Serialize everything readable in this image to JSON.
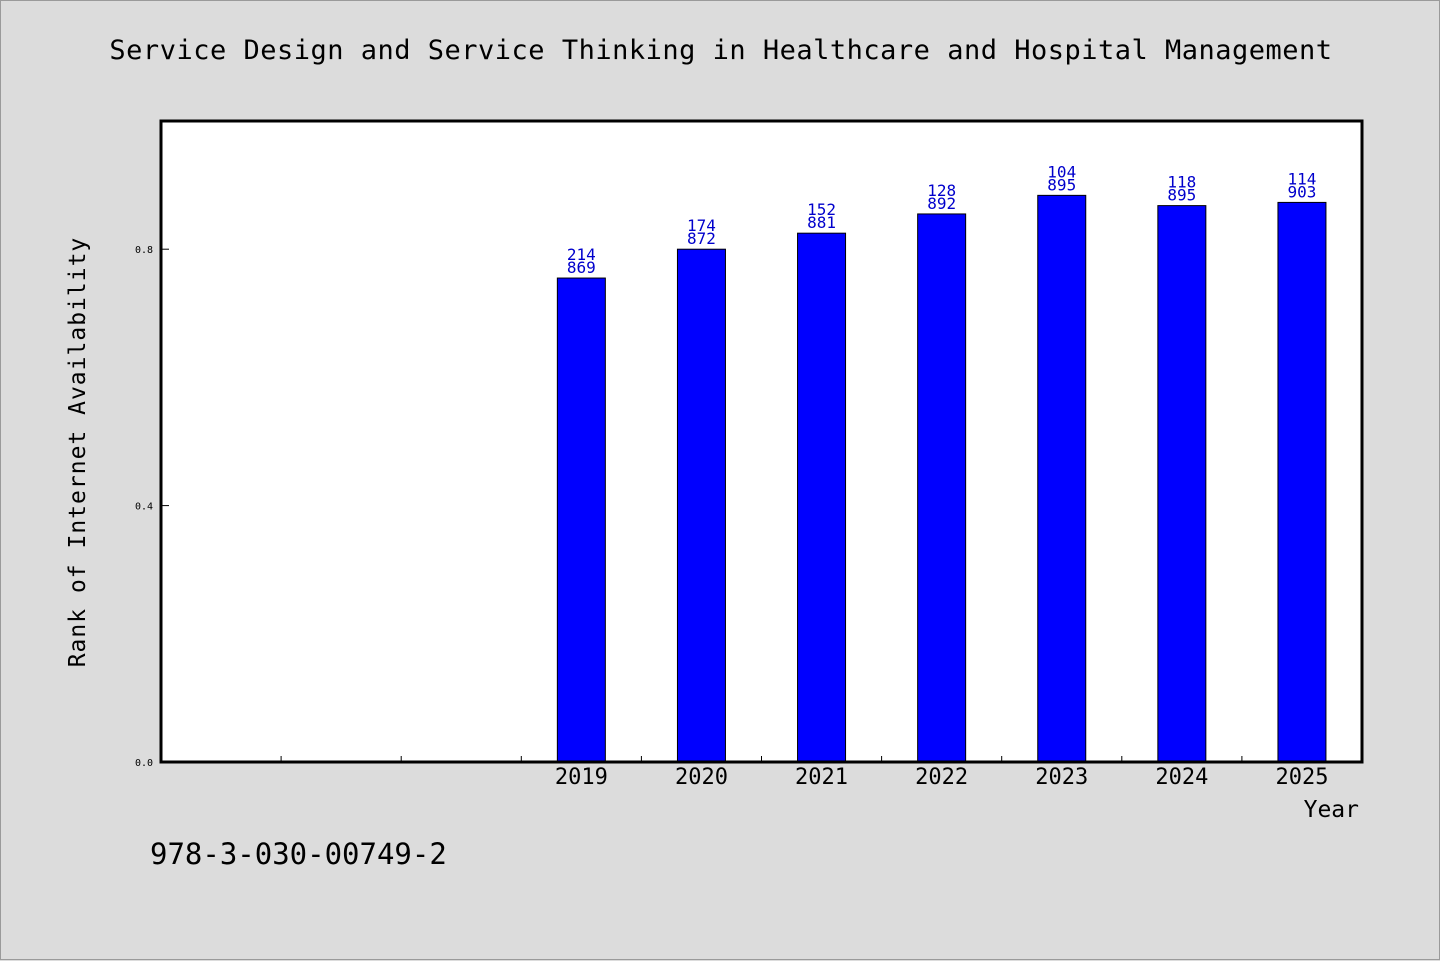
{
  "title": "Service Design and Service Thinking in Healthcare and Hospital Management",
  "isbn_text": "978-3-030-00749-2",
  "colors": {
    "bar": "#0000ff",
    "label": "#0000cc",
    "plot_bg": "#ffffff",
    "page_bg": "#dcdcdc"
  },
  "chart_data": {
    "type": "bar",
    "title": "Service Design and Service Thinking in Healthcare and Hospital Management",
    "xlabel": "Year",
    "ylabel": "Rank of Internet Availability",
    "categories": [
      "",
      "",
      "",
      "2019",
      "2020",
      "2021",
      "2022",
      "2023",
      "2024",
      "2025"
    ],
    "values": [
      null,
      null,
      null,
      0.755,
      0.8,
      0.825,
      0.855,
      0.884,
      0.868,
      0.873
    ],
    "bar_labels": [
      null,
      null,
      null,
      [
        "214",
        "869"
      ],
      [
        "174",
        "872"
      ],
      [
        "152",
        "881"
      ],
      [
        "128",
        "892"
      ],
      [
        "104",
        "895"
      ],
      [
        "118",
        "895"
      ],
      [
        "114",
        "903"
      ]
    ],
    "yticks": [
      "0.0",
      "0.4",
      "0.8"
    ],
    "ytick_values": [
      0.0,
      0.4,
      0.8
    ],
    "ylim": [
      0,
      1.0
    ],
    "grid": false,
    "legend": "none"
  }
}
